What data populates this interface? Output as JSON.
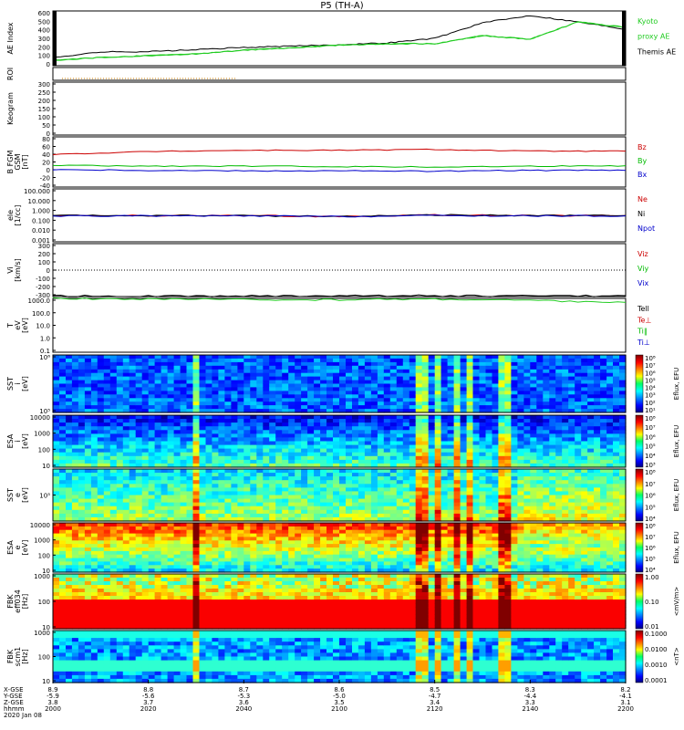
{
  "title": "P5 (TH-A)",
  "panels": [
    {
      "id": "ae",
      "ylabel": [
        "AE Index"
      ],
      "ticks": [
        "600",
        "500",
        "400",
        "300",
        "200",
        "100",
        "0"
      ],
      "right_labels": [
        {
          "text": "Kyoto",
          "color": "#22cc22"
        },
        {
          "text": "proxy AE",
          "color": "#22cc22"
        },
        {
          "text": "Themis AE",
          "color": "#000000"
        }
      ]
    },
    {
      "id": "roi",
      "ylabel": [
        "ROI"
      ],
      "ticks": [],
      "right_labels": []
    },
    {
      "id": "keogram",
      "ylabel": [
        "Keogram"
      ],
      "ticks": [
        "300",
        "250",
        "200",
        "150",
        "100",
        "50",
        "0"
      ],
      "right_labels": []
    },
    {
      "id": "bfgm",
      "ylabel": [
        "B FGM",
        "GSM",
        "[nT]"
      ],
      "ticks": [
        "80",
        "60",
        "40",
        "20",
        "0",
        "-20",
        "-40"
      ],
      "right_labels": [
        {
          "text": "Bz",
          "color": "#cc0000"
        },
        {
          "text": "By",
          "color": "#00bb00"
        },
        {
          "text": "Bx",
          "color": "#0000cc"
        }
      ]
    },
    {
      "id": "density",
      "ylabel": [
        "ele",
        "[1/cc]"
      ],
      "ticks": [
        "100.000",
        "10.000",
        "1.000",
        "0.100",
        "0.010",
        "0.001"
      ],
      "right_labels": [
        {
          "text": "Ne",
          "color": "#cc0000"
        },
        {
          "text": "Ni",
          "color": "#000000"
        },
        {
          "text": "Npot",
          "color": "#0000cc"
        }
      ]
    },
    {
      "id": "velocity",
      "ylabel": [
        "Vi",
        "[km/s]"
      ],
      "ticks": [
        "300",
        "200",
        "100",
        "0",
        "-100",
        "-200",
        "-300"
      ],
      "right_labels": [
        {
          "text": "Viz",
          "color": "#cc0000"
        },
        {
          "text": "Viy",
          "color": "#00bb00"
        },
        {
          "text": "Vix",
          "color": "#0000cc"
        }
      ]
    },
    {
      "id": "temperature",
      "ylabel": [
        "T",
        "eV",
        "[eV]"
      ],
      "ticks": [
        "1000.0",
        "100.0",
        "10.0",
        "1.0",
        "0.1"
      ],
      "right_labels": [
        {
          "text": "Tell",
          "color": "#000000"
        },
        {
          "text": "Te⊥",
          "color": "#cc0000"
        },
        {
          "text": "Ti‖",
          "color": "#00bb00"
        },
        {
          "text": "Ti⊥",
          "color": "#0000cc"
        }
      ]
    },
    {
      "id": "sst_ion",
      "ylabel": [
        "SST",
        "i",
        "[eV]"
      ],
      "ticks": [
        "10⁶",
        "10⁵"
      ],
      "cbar_label": "Eflux, EFU",
      "cbar_ticks": [
        "10⁸",
        "10⁷",
        "10⁶",
        "10⁵",
        "10⁴",
        "10³",
        "10²",
        "10¹"
      ]
    },
    {
      "id": "esa_ion",
      "ylabel": [
        "ESA",
        "i",
        "[eV]"
      ],
      "ticks": [
        "10000",
        "1000",
        "100",
        "10"
      ],
      "cbar_label": "Eflux, EFU",
      "cbar_ticks": [
        "10⁸",
        "10⁷",
        "10⁶",
        "10⁵",
        "10⁴",
        "10³"
      ]
    },
    {
      "id": "sst_ele",
      "ylabel": [
        "SST",
        "e",
        "[eV]"
      ],
      "ticks": [
        "10⁵"
      ],
      "cbar_label": "Eflux, EFU",
      "cbar_ticks": [
        "10⁸",
        "10⁷",
        "10⁶",
        "10⁵",
        "10⁴"
      ]
    },
    {
      "id": "esa_ele",
      "ylabel": [
        "ESA",
        "e",
        "[eV]"
      ],
      "ticks": [
        "10000",
        "1000",
        "100",
        "10"
      ],
      "cbar_label": "Eflux, EFU",
      "cbar_ticks": [
        "10⁸",
        "10⁷",
        "10⁶",
        "10⁵",
        "10⁴"
      ]
    },
    {
      "id": "fbk_e",
      "ylabel": [
        "FBK",
        "eff034",
        "[Hz]"
      ],
      "ticks": [
        "1000",
        "100",
        "10"
      ],
      "cbar_label": "<mV/m>",
      "cbar_ticks": [
        "1.00",
        "0.10",
        "0.01"
      ]
    },
    {
      "id": "fbk_b",
      "ylabel": [
        "FBK",
        "scm1",
        "[Hz]"
      ],
      "ticks": [
        "1000",
        "100",
        "10"
      ],
      "cbar_label": "<nT>",
      "cbar_ticks": [
        "0.1000",
        "0.0100",
        "0.0010",
        "0.0001"
      ]
    }
  ],
  "xaxis": {
    "row_labels": [
      "X-GSE",
      "Y-GSE",
      "Z-GSE",
      "hhmm",
      "2020 Jan 08"
    ],
    "columns": [
      [
        "8.9",
        "-5.9",
        "3.8",
        "2000"
      ],
      [
        "8.8",
        "-5.6",
        "3.7",
        "2020"
      ],
      [
        "8.7",
        "-5.3",
        "3.6",
        "2040"
      ],
      [
        "8.6",
        "-5.0",
        "3.5",
        "2100"
      ],
      [
        "8.5",
        "-4.7",
        "3.4",
        "2120"
      ],
      [
        "8.3",
        "-4.4",
        "3.3",
        "2140"
      ],
      [
        "8.2",
        "-4.1",
        "3.1",
        "2200"
      ]
    ]
  },
  "chart_data": [
    {
      "type": "line",
      "title": "",
      "ylabel": "AE Index",
      "ylim": [
        0,
        600
      ],
      "x": [
        "2000",
        "2010",
        "2020",
        "2030",
        "2040",
        "2050",
        "2100",
        "2110",
        "2120",
        "2130",
        "2140",
        "2150",
        "2200"
      ],
      "series": [
        {
          "name": "Themis AE",
          "values": [
            90,
            150,
            155,
            175,
            200,
            215,
            230,
            250,
            300,
            470,
            550,
            480,
            400
          ]
        },
        {
          "name": "Kyoto",
          "values": [
            60,
            90,
            110,
            130,
            170,
            195,
            225,
            240,
            240,
            330,
            290,
            480,
            420
          ]
        },
        {
          "name": "proxy AE",
          "values": [
            60,
            90,
            110,
            130,
            170,
            195,
            225,
            240,
            240,
            330,
            290,
            480,
            420
          ]
        }
      ]
    },
    {
      "type": "line",
      "title": "",
      "ylabel": "B FGM GSM [nT]",
      "ylim": [
        -40,
        80
      ],
      "x": [
        "2000",
        "2020",
        "2040",
        "2100",
        "2120",
        "2140",
        "2200"
      ],
      "series": [
        {
          "name": "Bz",
          "values": [
            38,
            45,
            48,
            48,
            50,
            46,
            46
          ]
        },
        {
          "name": "By",
          "values": [
            12,
            10,
            10,
            9,
            8,
            10,
            11
          ]
        },
        {
          "name": "Bx",
          "values": [
            2,
            0,
            -1,
            -1,
            -2,
            0,
            0
          ]
        }
      ]
    },
    {
      "type": "line",
      "title": "",
      "ylabel": "ele [1/cc]",
      "ylim": [
        0.001,
        100
      ],
      "x": [
        "2000",
        "2020",
        "2040",
        "2100",
        "2120",
        "2140",
        "2200"
      ],
      "series": [
        {
          "name": "Ne",
          "values": [
            0.3,
            0.3,
            0.3,
            0.25,
            0.35,
            0.3,
            0.3
          ]
        },
        {
          "name": "Ni",
          "values": [
            0.3,
            0.3,
            0.3,
            0.25,
            0.35,
            0.3,
            0.3
          ]
        },
        {
          "name": "Npot",
          "values": [
            0.28,
            0.28,
            0.28,
            0.24,
            0.3,
            0.28,
            0.28
          ]
        }
      ]
    },
    {
      "type": "line",
      "title": "",
      "ylabel": "T eV [eV]",
      "ylim": [
        0.1,
        1000
      ],
      "x": [
        "2000",
        "2020",
        "2040",
        "2100",
        "2120",
        "2140",
        "2200"
      ],
      "series": [
        {
          "name": "Tell",
          "values": [
            1500,
            1500,
            1500,
            1600,
            1600,
            1500,
            1600
          ]
        },
        {
          "name": "Ti‖",
          "values": [
            1000,
            900,
            800,
            800,
            900,
            700,
            500
          ]
        }
      ]
    },
    {
      "type": "heatmap",
      "title": "",
      "ylabel": "ESA i [eV]"
    },
    {
      "type": "heatmap",
      "title": "",
      "ylabel": "ESA e [eV]"
    },
    {
      "type": "heatmap",
      "title": "",
      "ylabel": "FBK eff034 [Hz]"
    },
    {
      "type": "heatmap",
      "title": "",
      "ylabel": "FBK scm1 [Hz]"
    }
  ]
}
